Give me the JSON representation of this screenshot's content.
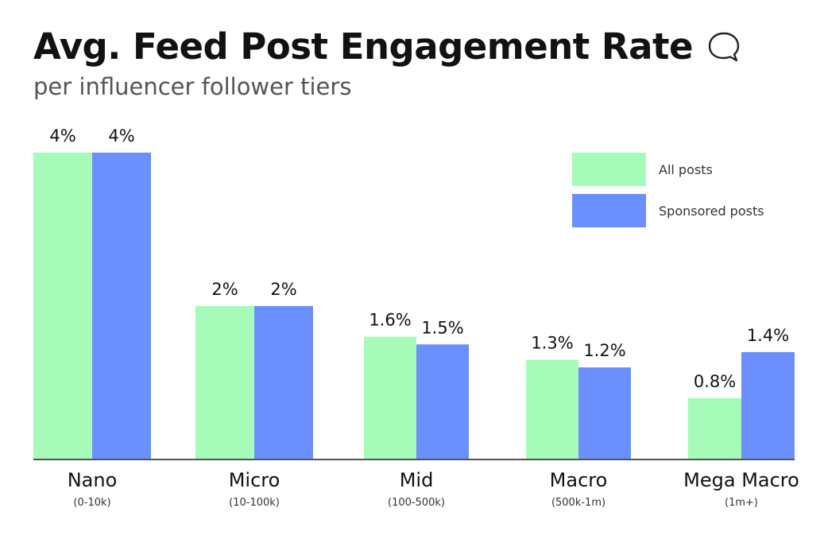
{
  "colors": {
    "all_posts": "#a6fbb8",
    "sponsored": "#6b8ffd",
    "axis": "#555555",
    "text": "#111111"
  },
  "chart_data": {
    "type": "bar",
    "title": "Avg. Feed Post Engagement Rate",
    "subtitle": "per influencer follower tiers",
    "xlabel": "",
    "ylabel": "",
    "ylim": [
      0,
      4
    ],
    "categories": [
      "Nano",
      "Micro",
      "Mid",
      "Macro",
      "Mega Macro"
    ],
    "category_sublabels": [
      "(0-10k)",
      "(10-100k)",
      "(100-500k)",
      "(500k-1m)",
      "(1m+)"
    ],
    "series": [
      {
        "name": "All posts",
        "values": [
          4,
          2,
          1.6,
          1.3,
          0.8
        ],
        "labels": [
          "4%",
          "2%",
          "1.6%",
          "1.3%",
          "0.8%"
        ]
      },
      {
        "name": "Sponsored posts",
        "values": [
          4,
          2,
          1.5,
          1.2,
          1.4
        ],
        "labels": [
          "4%",
          "2%",
          "1.5%",
          "1.2%",
          "1.4%"
        ]
      }
    ],
    "legend_position": "top-right",
    "grid": false
  }
}
